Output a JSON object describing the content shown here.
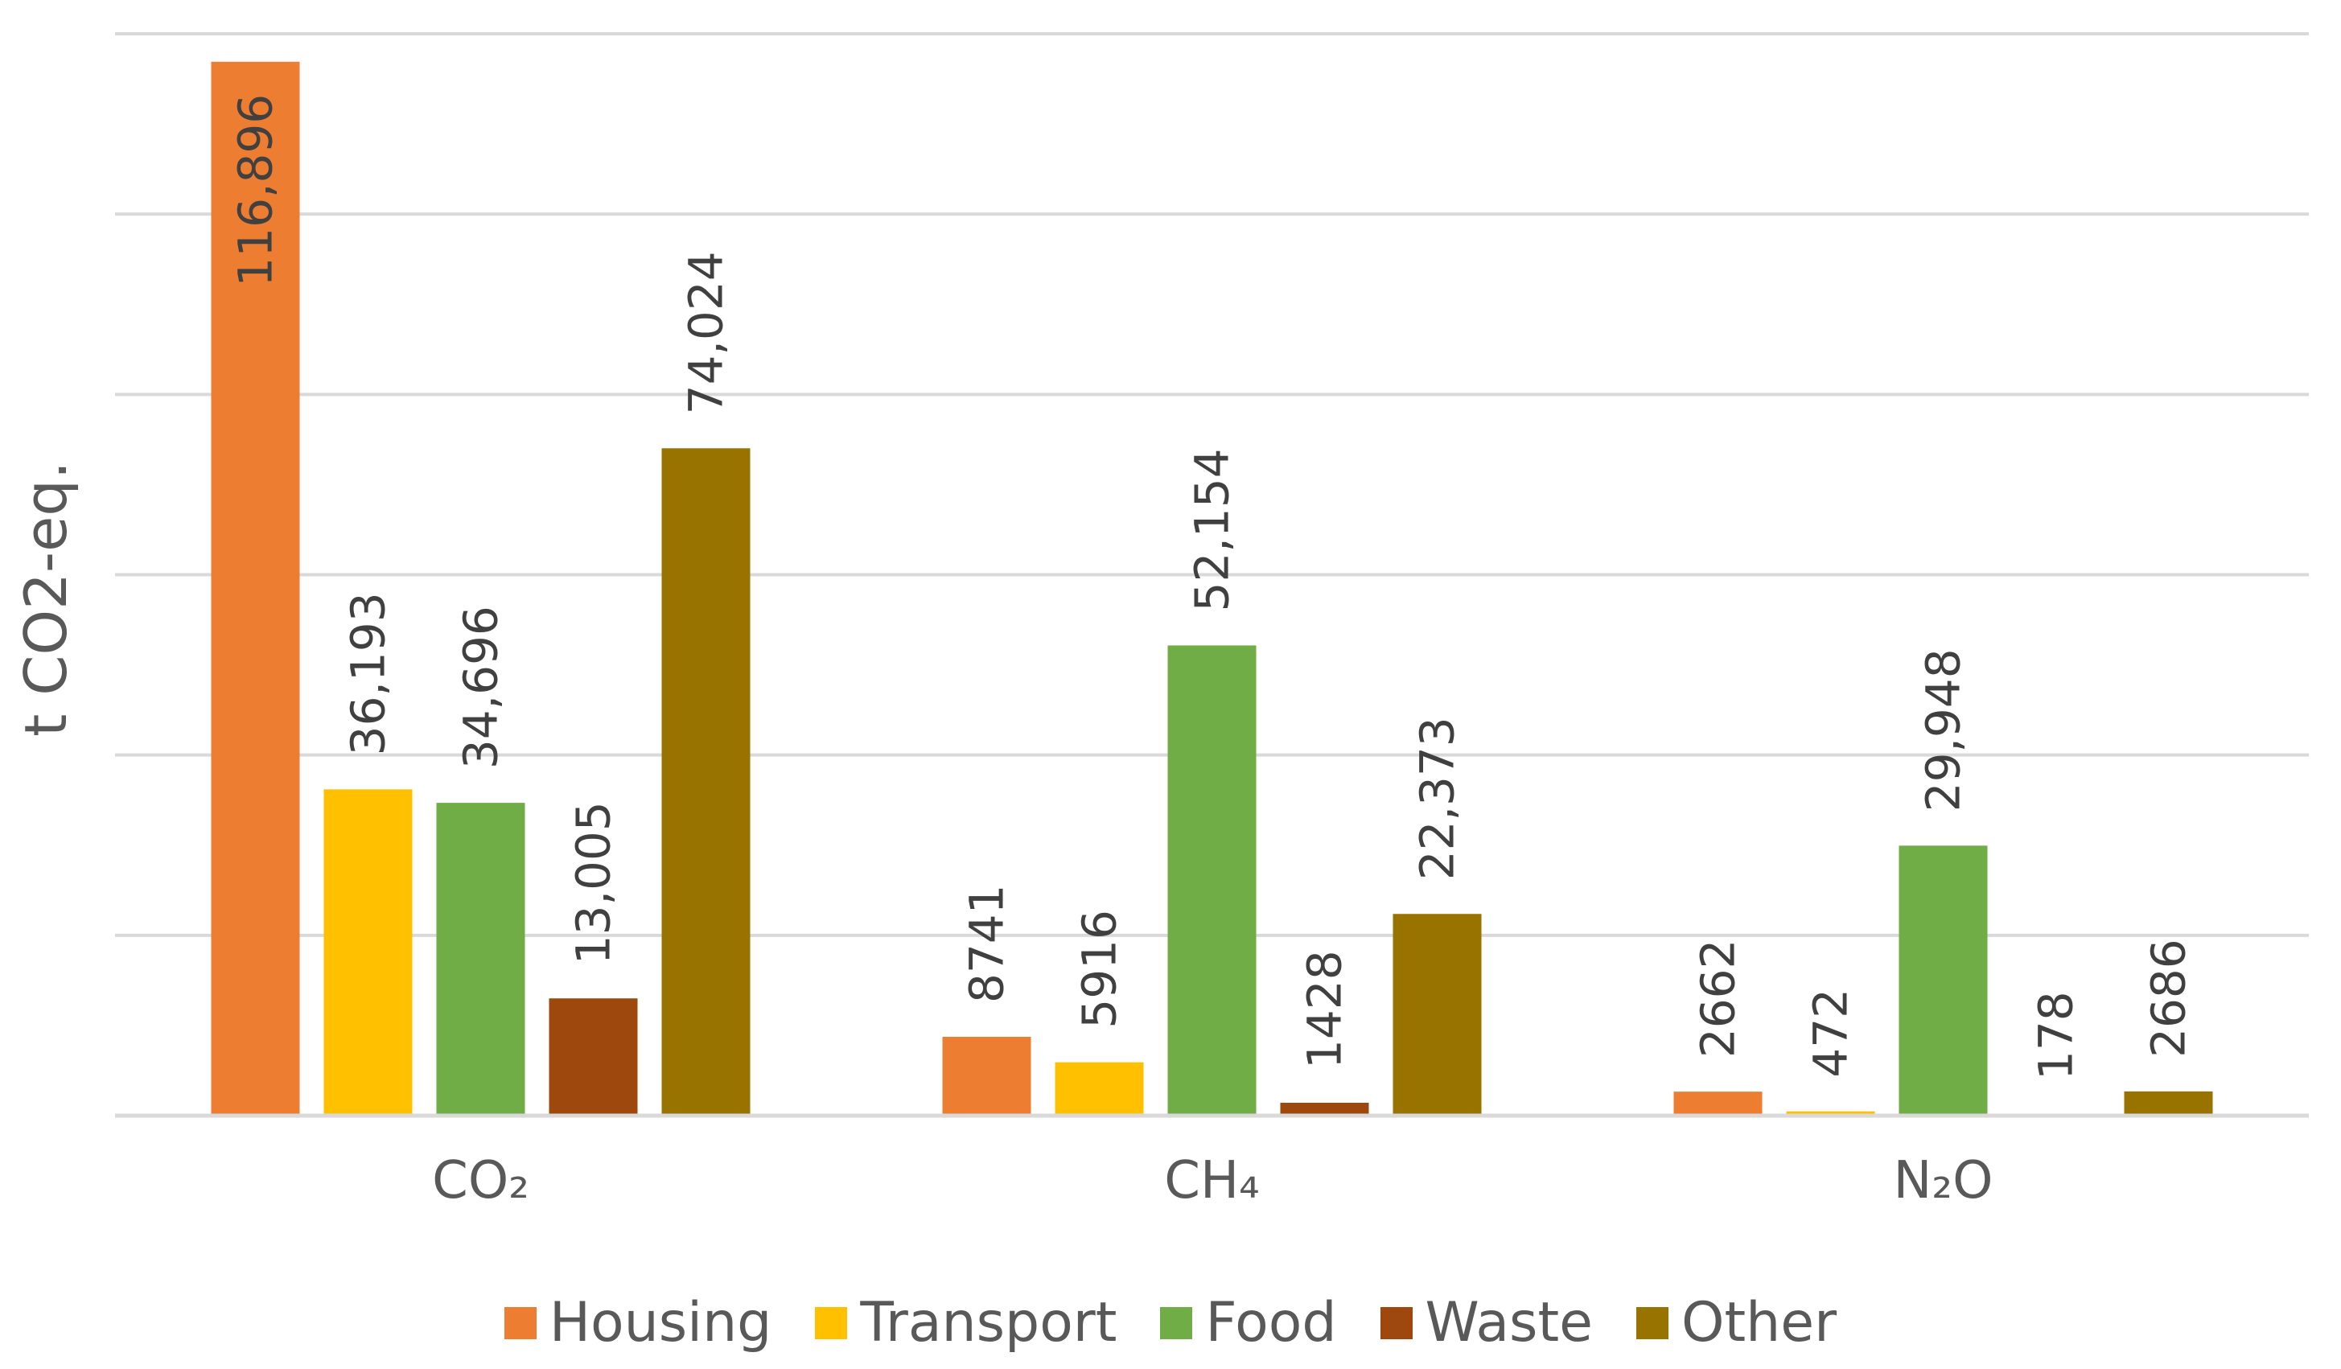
{
  "chart_data": {
    "type": "bar",
    "title": "",
    "xlabel": "",
    "ylabel": "t CO2-eq.",
    "ylim": [
      0,
      120000
    ],
    "y_gridline_step": 20000,
    "y_tick_labels_shown": false,
    "grid": true,
    "legend_position": "bottom",
    "categories": [
      {
        "label": "CO₂"
      },
      {
        "label": "CH₄"
      },
      {
        "label": "N₂O"
      }
    ],
    "series": [
      {
        "name": "Housing",
        "color": "#ED7D31",
        "values": [
          116896,
          8741,
          2662
        ],
        "labels": [
          "116,896",
          "8741",
          "2662"
        ]
      },
      {
        "name": "Transport",
        "color": "#FFC000",
        "values": [
          36193,
          5916,
          472
        ],
        "labels": [
          "36,193",
          "5916",
          "472"
        ]
      },
      {
        "name": "Food",
        "color": "#70AD47",
        "values": [
          34696,
          52154,
          29948
        ],
        "labels": [
          "34,696",
          "52,154",
          "29,948"
        ]
      },
      {
        "name": "Waste",
        "color": "#9E480E",
        "values": [
          13005,
          1428,
          178
        ],
        "labels": [
          "13,005",
          "1428",
          "178"
        ]
      },
      {
        "name": "Other",
        "color": "#997300",
        "values": [
          74024,
          22373,
          2686
        ],
        "labels": [
          "74,024",
          "22,373",
          "2686"
        ]
      }
    ]
  }
}
